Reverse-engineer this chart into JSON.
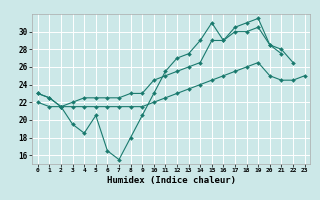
{
  "xlabel": "Humidex (Indice chaleur)",
  "bg_color": "#cce8e8",
  "grid_color": "#ffffff",
  "line_color": "#1a7a6e",
  "xlim": [
    -0.5,
    23.5
  ],
  "ylim": [
    15.0,
    32.0
  ],
  "xticks": [
    0,
    1,
    2,
    3,
    4,
    5,
    6,
    7,
    8,
    9,
    10,
    11,
    12,
    13,
    14,
    15,
    16,
    17,
    18,
    19,
    20,
    21,
    22,
    23
  ],
  "yticks": [
    16,
    18,
    20,
    22,
    24,
    26,
    28,
    30
  ],
  "line1_x": [
    0,
    1,
    2,
    3,
    4,
    5,
    6,
    7,
    8,
    9,
    10,
    11,
    12,
    13,
    14,
    15,
    16,
    17,
    18,
    19,
    20,
    21,
    22
  ],
  "line1_y": [
    23.0,
    22.5,
    21.5,
    19.5,
    18.5,
    20.5,
    16.5,
    15.5,
    18.0,
    20.5,
    23.0,
    25.5,
    27.0,
    27.5,
    29.0,
    31.0,
    29.0,
    30.5,
    31.0,
    31.5,
    28.5,
    28.0,
    26.5
  ],
  "line2_x": [
    0,
    1,
    2,
    3,
    4,
    5,
    6,
    7,
    8,
    9,
    10,
    11,
    12,
    13,
    14,
    15,
    16,
    17,
    18,
    19,
    20,
    21
  ],
  "line2_y": [
    23.0,
    22.5,
    21.5,
    22.0,
    22.5,
    22.5,
    22.5,
    22.5,
    23.0,
    23.0,
    24.5,
    25.0,
    25.5,
    26.0,
    26.5,
    29.0,
    29.0,
    30.0,
    30.0,
    30.5,
    28.5,
    27.5
  ],
  "line3_x": [
    0,
    1,
    2,
    3,
    4,
    5,
    6,
    7,
    8,
    9,
    10,
    11,
    12,
    13,
    14,
    15,
    16,
    17,
    18,
    19,
    20,
    21,
    22,
    23
  ],
  "line3_y": [
    22.0,
    21.5,
    21.5,
    21.5,
    21.5,
    21.5,
    21.5,
    21.5,
    21.5,
    21.5,
    22.0,
    22.5,
    23.0,
    23.5,
    24.0,
    24.5,
    25.0,
    25.5,
    26.0,
    26.5,
    25.0,
    24.5,
    24.5,
    25.0
  ]
}
